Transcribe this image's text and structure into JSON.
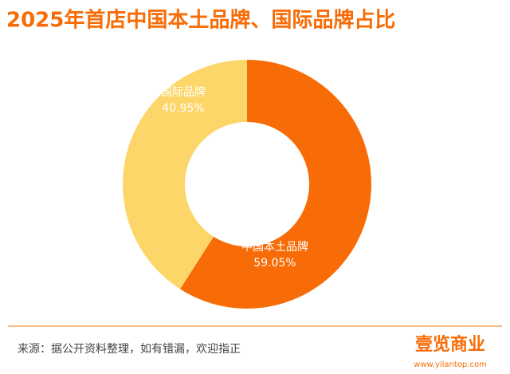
{
  "chart_data": {
    "type": "donut",
    "title": "2025年首店中国本土品牌、国际品牌占比",
    "categories": [
      "中国本土品牌",
      "国际品牌"
    ],
    "values": [
      59.05,
      40.95
    ],
    "value_labels": [
      "59.05%",
      "40.95%"
    ],
    "colors": [
      "#f76c06",
      "#fdd66a"
    ],
    "source": "来源：据公开资料整理，如有错漏，欢迎指正"
  },
  "logo": {
    "name": "壹览商业",
    "url": "www.yilantop.com"
  }
}
